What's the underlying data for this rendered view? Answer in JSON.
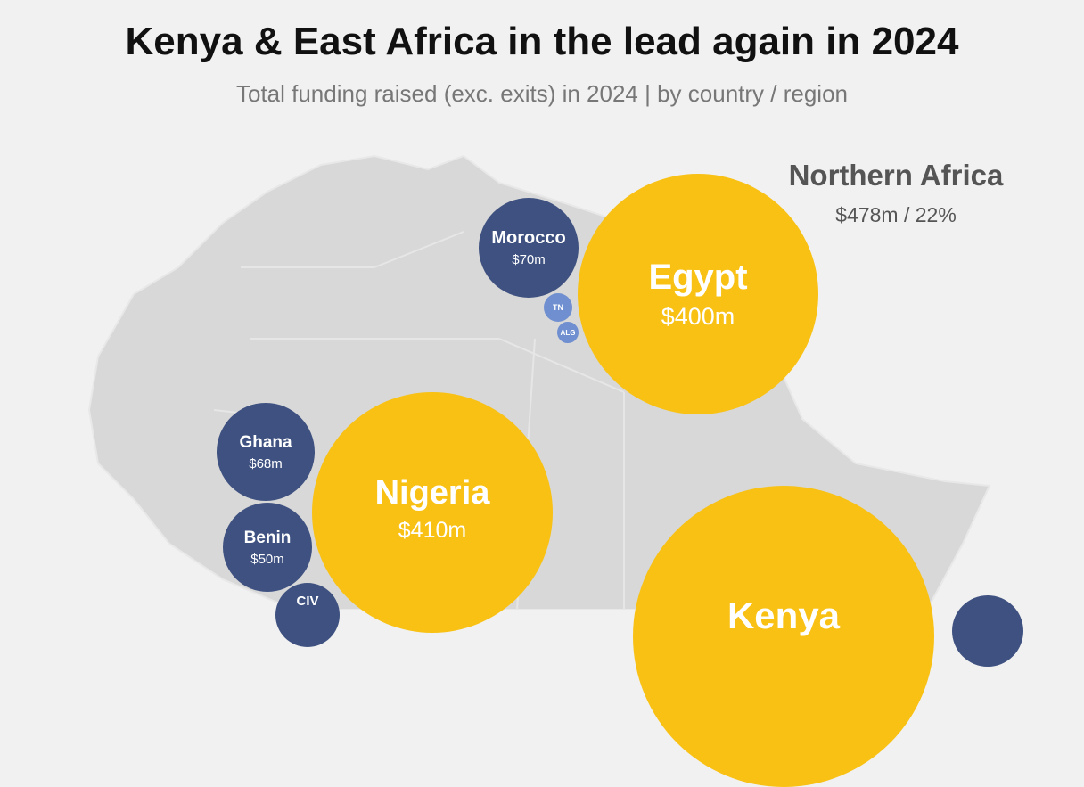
{
  "title": "Kenya & East Africa in the lead again in 2024",
  "subtitle": "Total funding raised (exc. exits) in 2024 | by country / region",
  "region": {
    "name": "Northern Africa",
    "value": "$478m / 22%"
  },
  "colors": {
    "major": "#f8c114",
    "minor": "#3e5180",
    "small": "#6f8fd0",
    "map": "#d8d8d8"
  },
  "chart_data": {
    "type": "bubble-map",
    "bubbles": [
      {
        "label": "Egypt",
        "value_label": "$400m",
        "value": 400
      },
      {
        "label": "Nigeria",
        "value_label": "$410m",
        "value": 410
      },
      {
        "label": "Kenya",
        "value": null
      },
      {
        "label": "Morocco",
        "value_label": "$70m",
        "value": 70
      },
      {
        "label": "TN"
      },
      {
        "label": "ALG"
      },
      {
        "label": "Ghana",
        "value_label": "$68m",
        "value": 68
      },
      {
        "label": "Benin",
        "value_label": "$50m",
        "value": 50
      },
      {
        "label": "CIV"
      }
    ]
  }
}
